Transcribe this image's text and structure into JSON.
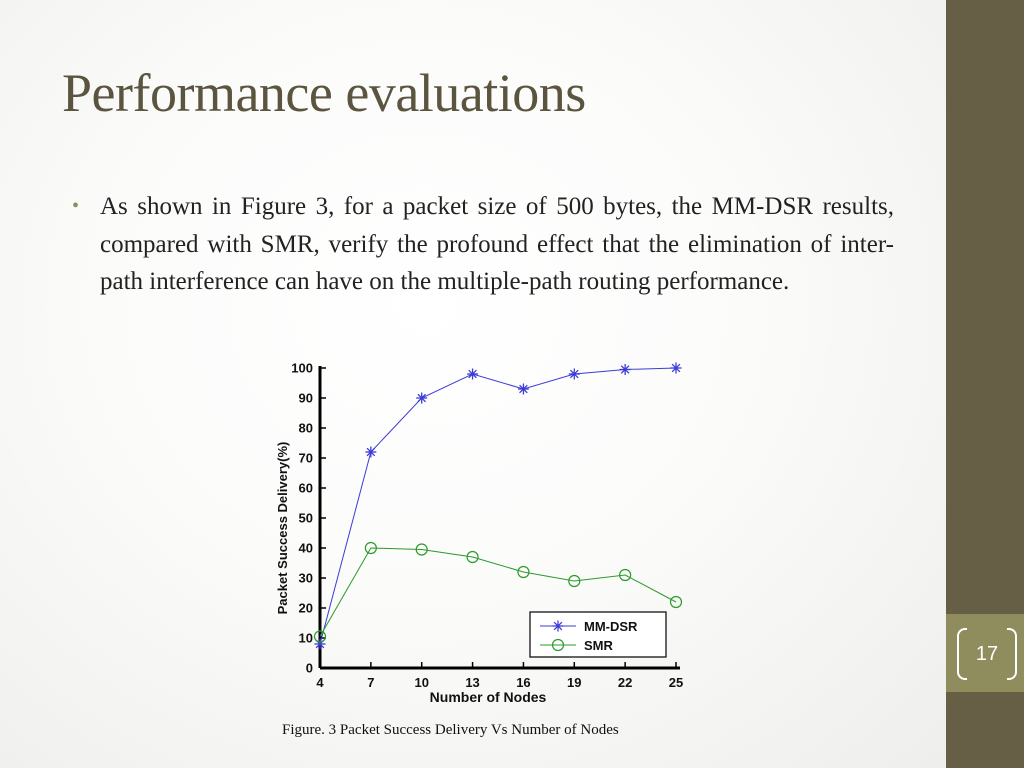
{
  "slide": {
    "title": "Performance evaluations",
    "bullet": "As shown in Figure 3, for a packet size of 500 bytes, the MM-DSR results, compared with SMR, verify the profound effect that the elimination of inter-path interference can have on the multiple-path routing performance.",
    "page_number": "17",
    "caption": "Figure. 3  Packet Success Delivery Vs Number of Nodes"
  },
  "colors": {
    "title": "#5b5540",
    "side_bar": "#675e46",
    "accent": "#8f8c5e",
    "mmdsr": "#3b3bd8",
    "smr": "#2a9a2a"
  },
  "chart_data": {
    "type": "line",
    "x": [
      4,
      7,
      10,
      13,
      16,
      19,
      22,
      25
    ],
    "series": [
      {
        "name": "MM-DSR",
        "marker": "asterisk",
        "color": "#3b3bd8",
        "values": [
          8,
          72,
          90,
          98,
          93,
          98,
          99.5,
          100
        ]
      },
      {
        "name": "SMR",
        "marker": "circle",
        "color": "#2a9a2a",
        "values": [
          10.5,
          40,
          39.5,
          37,
          32,
          29,
          31,
          22
        ]
      }
    ],
    "xlabel": "Number of Nodes",
    "ylabel": "Packet Success Delivery(%)",
    "ylim": [
      0,
      100
    ],
    "yticks": [
      0,
      10,
      20,
      30,
      40,
      50,
      60,
      70,
      80,
      90,
      100
    ],
    "xticks": [
      4,
      7,
      10,
      13,
      16,
      19,
      22,
      25
    ],
    "grid": false,
    "legend_position": "bottom-right"
  }
}
